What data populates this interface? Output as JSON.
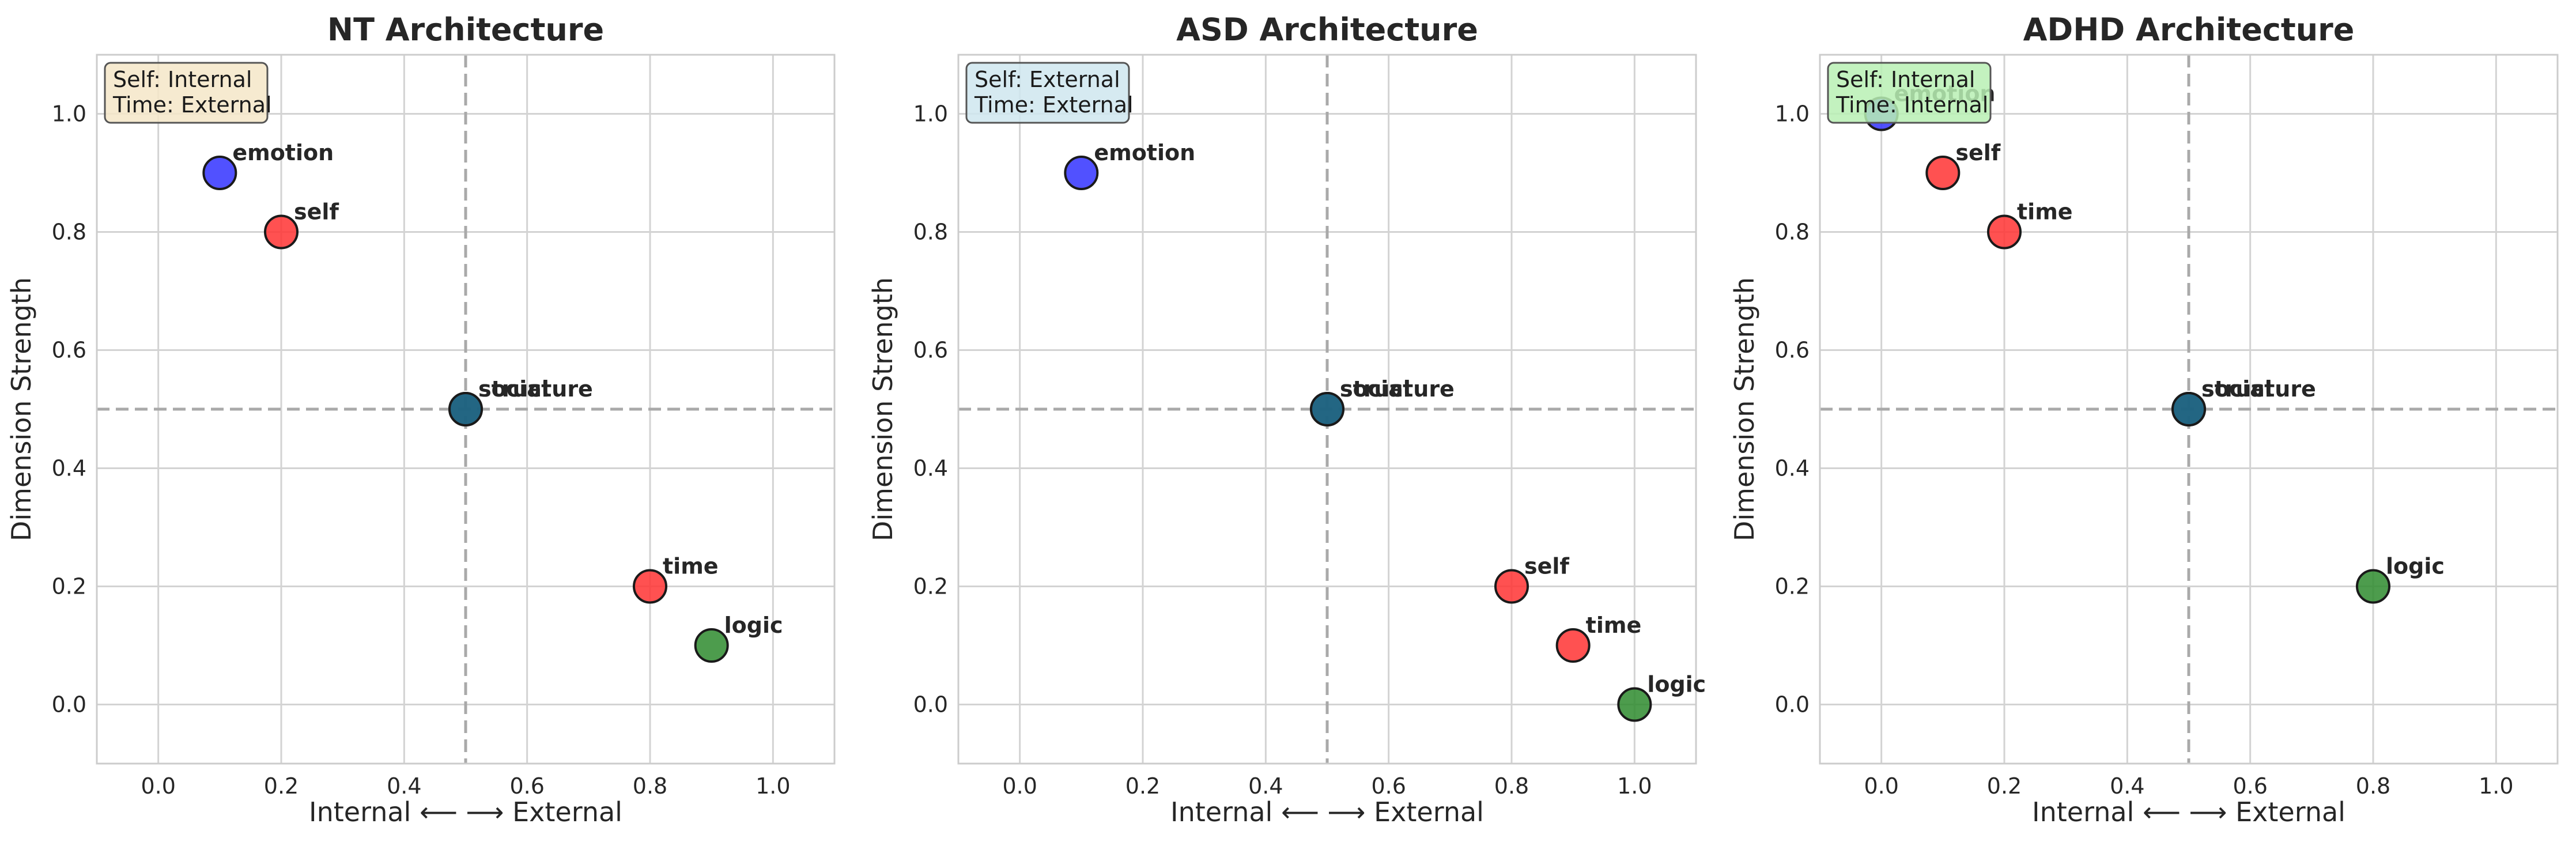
{
  "chart_data": [
    {
      "type": "scatter",
      "title": "NT Architecture",
      "xlabel": "Internal ⟵ ⟶ External",
      "ylabel": "Dimension Strength",
      "xlim": [
        -0.1,
        1.1
      ],
      "ylim": [
        -0.1,
        1.1
      ],
      "xticks": [
        "0.0",
        "0.2",
        "0.4",
        "0.6",
        "0.8",
        "1.0"
      ],
      "yticks": [
        "0.0",
        "0.2",
        "0.4",
        "0.6",
        "0.8",
        "1.0"
      ],
      "grid": true,
      "reference_lines": {
        "x": 0.5,
        "y": 0.5
      },
      "info_box": {
        "lines": [
          "Self: Internal",
          "Time: External"
        ],
        "color": "#f5e6c8"
      },
      "points": [
        {
          "label": "emotion",
          "x": 0.1,
          "y": 0.9,
          "color": "#3333ff"
        },
        {
          "label": "self",
          "x": 0.2,
          "y": 0.8,
          "color": "#ff3333"
        },
        {
          "label": "social",
          "x": 0.5,
          "y": 0.5,
          "color": "#1f7a1f"
        },
        {
          "label": "structure",
          "x": 0.5,
          "y": 0.5,
          "color": "#1f5f8f"
        },
        {
          "label": "time",
          "x": 0.8,
          "y": 0.2,
          "color": "#ff3333"
        },
        {
          "label": "logic",
          "x": 0.9,
          "y": 0.1,
          "color": "#2e8b2e"
        }
      ]
    },
    {
      "type": "scatter",
      "title": "ASD Architecture",
      "xlabel": "Internal ⟵ ⟶ External",
      "ylabel": "Dimension Strength",
      "xlim": [
        -0.1,
        1.1
      ],
      "ylim": [
        -0.1,
        1.1
      ],
      "xticks": [
        "0.0",
        "0.2",
        "0.4",
        "0.6",
        "0.8",
        "1.0"
      ],
      "yticks": [
        "0.0",
        "0.2",
        "0.4",
        "0.6",
        "0.8",
        "1.0"
      ],
      "grid": true,
      "reference_lines": {
        "x": 0.5,
        "y": 0.5
      },
      "info_box": {
        "lines": [
          "Self: External",
          "Time: External"
        ],
        "color": "#cfe6ee"
      },
      "points": [
        {
          "label": "emotion",
          "x": 0.1,
          "y": 0.9,
          "color": "#3333ff"
        },
        {
          "label": "social",
          "x": 0.5,
          "y": 0.5,
          "color": "#1f7a1f"
        },
        {
          "label": "structure",
          "x": 0.5,
          "y": 0.5,
          "color": "#1f5f8f"
        },
        {
          "label": "self",
          "x": 0.8,
          "y": 0.2,
          "color": "#ff3333"
        },
        {
          "label": "time",
          "x": 0.9,
          "y": 0.1,
          "color": "#ff3333"
        },
        {
          "label": "logic",
          "x": 1.0,
          "y": 0.0,
          "color": "#2e8b2e"
        }
      ]
    },
    {
      "type": "scatter",
      "title": "ADHD Architecture",
      "xlabel": "Internal ⟵ ⟶ External",
      "ylabel": "Dimension Strength",
      "xlim": [
        -0.1,
        1.1
      ],
      "ylim": [
        -0.1,
        1.1
      ],
      "xticks": [
        "0.0",
        "0.2",
        "0.4",
        "0.6",
        "0.8",
        "1.0"
      ],
      "yticks": [
        "0.0",
        "0.2",
        "0.4",
        "0.6",
        "0.8",
        "1.0"
      ],
      "grid": true,
      "reference_lines": {
        "x": 0.5,
        "y": 0.5
      },
      "info_box": {
        "lines": [
          "Self: Internal",
          "Time: Internal"
        ],
        "color": "#b9f0b4"
      },
      "points": [
        {
          "label": "emotion",
          "x": 0.0,
          "y": 1.0,
          "color": "#3333ff"
        },
        {
          "label": "self",
          "x": 0.1,
          "y": 0.9,
          "color": "#ff3333"
        },
        {
          "label": "time",
          "x": 0.2,
          "y": 0.8,
          "color": "#ff3333"
        },
        {
          "label": "social",
          "x": 0.5,
          "y": 0.5,
          "color": "#1f7a1f"
        },
        {
          "label": "structure",
          "x": 0.5,
          "y": 0.5,
          "color": "#1f5f8f"
        },
        {
          "label": "logic",
          "x": 0.8,
          "y": 0.2,
          "color": "#2e8b2e"
        }
      ]
    }
  ]
}
